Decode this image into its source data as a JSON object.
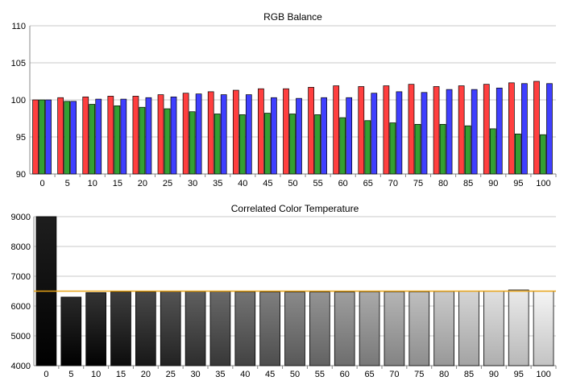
{
  "chart_data": [
    {
      "type": "bar",
      "title": "RGB Balance",
      "xlabel": "",
      "ylabel": "",
      "ylim": [
        90,
        110
      ],
      "yticks": [
        90,
        95,
        100,
        105,
        110
      ],
      "grid": true,
      "categories": [
        "0",
        "5",
        "10",
        "15",
        "20",
        "25",
        "30",
        "35",
        "40",
        "45",
        "50",
        "55",
        "60",
        "65",
        "70",
        "75",
        "80",
        "85",
        "90",
        "95",
        "100"
      ],
      "series": [
        {
          "color": "#ff3f3f",
          "values": [
            100.0,
            100.3,
            100.4,
            100.5,
            100.5,
            100.7,
            100.9,
            101.1,
            101.3,
            101.5,
            101.5,
            101.7,
            101.9,
            101.8,
            101.9,
            102.1,
            101.8,
            101.9,
            102.1,
            102.3,
            102.5
          ]
        },
        {
          "color": "#33a033",
          "values": [
            100.0,
            99.8,
            99.4,
            99.2,
            99.0,
            98.8,
            98.4,
            98.1,
            98.0,
            98.2,
            98.1,
            98.0,
            97.6,
            97.2,
            96.9,
            96.7,
            96.7,
            96.5,
            96.1,
            95.4,
            95.3
          ]
        },
        {
          "color": "#3f3fff",
          "values": [
            100.0,
            99.8,
            100.1,
            100.1,
            100.3,
            100.4,
            100.8,
            100.7,
            100.7,
            100.3,
            100.2,
            100.3,
            100.3,
            100.9,
            101.1,
            101.0,
            101.4,
            101.4,
            101.6,
            102.2,
            102.2
          ]
        }
      ]
    },
    {
      "type": "bar",
      "title": "Correlated Color Temperature",
      "xlabel": "",
      "ylabel": "",
      "ylim": [
        4000,
        9000
      ],
      "yticks": [
        4000,
        5000,
        6000,
        7000,
        8000,
        9000
      ],
      "grid": true,
      "categories": [
        "0",
        "5",
        "10",
        "15",
        "20",
        "25",
        "30",
        "35",
        "40",
        "45",
        "50",
        "55",
        "60",
        "65",
        "70",
        "75",
        "80",
        "85",
        "90",
        "95",
        "100"
      ],
      "values": [
        9000,
        6300,
        6450,
        6480,
        6480,
        6490,
        6490,
        6490,
        6480,
        6470,
        6470,
        6470,
        6470,
        6480,
        6480,
        6480,
        6490,
        6500,
        6500,
        6540,
        6500
      ],
      "reference_line": {
        "value": 6500,
        "color": "#e8a317"
      }
    }
  ]
}
